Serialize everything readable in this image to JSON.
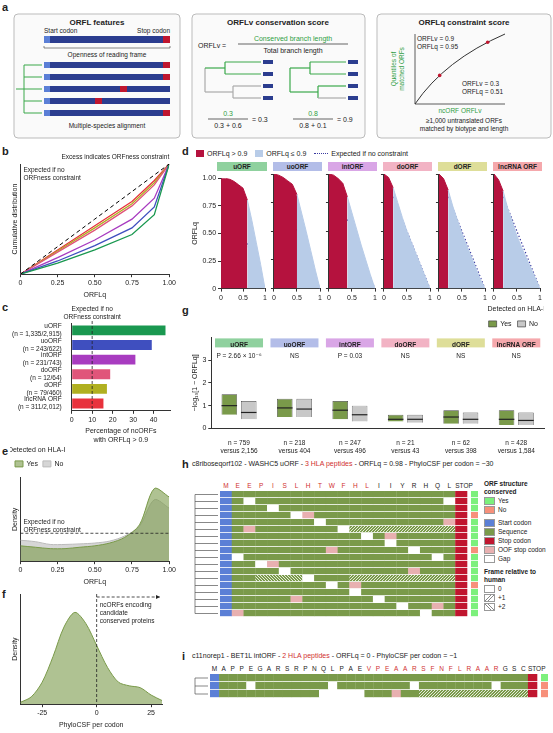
{
  "panels": {
    "a": {
      "panel": "a",
      "features": {
        "title": "ORFL features",
        "start": "Start codon",
        "stop": "Stop codon",
        "openness": "Openness of reading frame",
        "alignment": "Multiple-species alignment"
      },
      "conservation": {
        "title": "ORFLv conservation score",
        "lhs": "ORFLv =",
        "numerator": "Conserved branch length",
        "denominator": "Total branch length",
        "examples": [
          {
            "numerator": "0.3",
            "denominator": "0.3 + 0.6",
            "result": "= 0.3"
          },
          {
            "numerator": "0.8",
            "denominator": "0.8 + 0.1",
            "result": "= 0.9"
          }
        ]
      },
      "constraint": {
        "title": "ORFLq constraint score",
        "y_label": "Quantiles of matched ORFs",
        "x_label": "ncORF ORFLv",
        "points": [
          [
            "ORFLv = 0.9",
            "ORFLq = 0.95"
          ],
          [
            "ORFLv = 0.3",
            "ORFLq = 0.51"
          ]
        ],
        "note": "≥1,000 untranslated ORFs matched by biotype and length"
      }
    },
    "h": {
      "panel": "h",
      "title": [
        {
          "text": "c8riboseqorf102 - WASHC5 uORF - "
        },
        {
          "text": "3 HLA peptides",
          "peptide": true
        },
        {
          "text": " - ORFLq = 0.98 - PhyloCSF per codon = −30"
        }
      ],
      "sequence": [
        {
          "text": "M E E",
          "peptide": true
        },
        {
          "text": "P I S L H T W F H L",
          "peptide": true
        },
        {
          "text": "I I Y R H Q L"
        },
        {
          "text": "STOP"
        }
      ],
      "legend": [
        {
          "title": "ORF structure conserved",
          "items": [
            {
              "label": "Yes",
              "color": "#7cf07c"
            },
            {
              "label": "No",
              "color": "#f7907a"
            }
          ]
        },
        {
          "items": [
            {
              "label": "Start codon",
              "color": "#5b7fd6"
            },
            {
              "label": "Sequence",
              "color": "#7a9a4a"
            },
            {
              "label": "Stop codon",
              "color": "#c0162f"
            },
            {
              "label": "OOF stop codon",
              "color": "#e8b0b0"
            },
            {
              "label": "Gap",
              "color": "#ffffff"
            }
          ]
        },
        {
          "title": "Frame relative to human",
          "items": [
            {
              "label": "0"
            },
            {
              "label": "+1"
            },
            {
              "label": "+2"
            }
          ]
        }
      ]
    },
    "i": {
      "panel": "i",
      "title": [
        {
          "text": "c11norep1 - BET1L intORF - "
        },
        {
          "text": "2 HLA peptides",
          "peptide": true
        },
        {
          "text": " - ORFLq = 0 - PhyloCSF per codon = −1"
        }
      ],
      "sequence": [
        {
          "text": "M A P P E G A R S R P"
        },
        {
          "text": "N Q L P A E"
        },
        {
          "text": "V P E A",
          "peptide": true
        },
        {
          "text": "A R S",
          "peptide": true
        },
        {
          "text": "F N F L R A A R",
          "peptide": true
        },
        {
          "text": "G S C"
        },
        {
          "text": "STOP"
        }
      ]
    }
  },
  "chart_data": [
    {
      "panel": "b",
      "type": "line",
      "x": [
        0,
        0.25,
        0.5,
        0.75,
        0.9,
        1
      ],
      "xlim": [
        0,
        1
      ],
      "xticks": [
        0,
        0.25,
        {
          "value": 0.5,
          "label": "0.50"
        },
        0.75,
        {
          "value": 1,
          "label": "1.00"
        }
      ],
      "ylim": [
        0,
        1
      ],
      "tick_labels": "x",
      "x_label": "ORFLq",
      "y_label": "Cumulative distribution",
      "annotation": "Excess indicates ORFness constraint",
      "series": [
        {
          "name": "Expected if no ORFness constraint",
          "color": "#000000",
          "line_style": "dashed",
          "values": [
            0,
            0.25,
            0.5,
            0.75,
            0.9,
            1
          ]
        },
        {
          "color": "#1a9850",
          "values": [
            0,
            0.1,
            0.22,
            0.36,
            0.54,
            1
          ]
        },
        {
          "color": "#3f4fbf",
          "values": [
            0,
            0.12,
            0.26,
            0.42,
            0.61,
            1
          ]
        },
        {
          "color": "#a83cc0",
          "values": [
            0,
            0.15,
            0.31,
            0.5,
            0.69,
            1
          ]
        },
        {
          "color": "#e0557a",
          "values": [
            0,
            0.2,
            0.4,
            0.62,
            0.81,
            1
          ]
        },
        {
          "color": "#b0b020",
          "values": [
            0,
            0.21,
            0.42,
            0.64,
            0.83,
            1
          ]
        },
        {
          "color": "#e8323c",
          "values": [
            0,
            0.22,
            0.44,
            0.66,
            0.85,
            1
          ]
        }
      ]
    },
    {
      "panel": "c",
      "type": "bar",
      "orientation": "horizontal",
      "categories": [
        "uORF (n = 1,335/2,915)",
        "uoORF (n = 243/622)",
        "intORF (n = 231/743)",
        "doORF (n = 12/64)",
        "dORF (n = 79/460)",
        "lncRNA ORF (n = 311/2,012)"
      ],
      "values": [
        45.8,
        39.1,
        31.1,
        18.8,
        17.2,
        15.5
      ],
      "colors": [
        "#1a9850",
        "#3f4fbf",
        "#a83cc0",
        "#e0557a",
        "#b0b020",
        "#e8323c"
      ],
      "xlim": [
        0,
        48
      ],
      "xticks": [
        0,
        10,
        20,
        30,
        40
      ],
      "x_label": "Percentage of ncORFs with ORFLq > 0.9",
      "reference": {
        "value": 10,
        "label": "Expected if no ORFness constraint"
      }
    },
    {
      "panel": "d",
      "type": "line",
      "legend": "top",
      "threshold": 0.9,
      "x": [
        0,
        0.1,
        0.2,
        0.3,
        0.4,
        0.5,
        0.6,
        0.7,
        0.8,
        0.9,
        1
      ],
      "xlim": [
        0,
        1
      ],
      "xticks": [
        0,
        0.5,
        1
      ],
      "ylim": [
        0,
        1
      ],
      "yticks": [
        0,
        0.25,
        {
          "value": 0.5,
          "label": "0.50"
        },
        0.75,
        {
          "value": 1,
          "label": "1.00"
        }
      ],
      "y_label": "ORFLq",
      "series": [
        {
          "name": "ORFLq > 0.9",
          "color": "#b5123e"
        },
        {
          "name": "ORFLq ≤ 0.9",
          "color": "#b8cce8"
        },
        {
          "name": "Expected if no constraint",
          "color": "#3a3aa0",
          "line_style": "dotted",
          "values": [
            1,
            0.9,
            0.8,
            0.7,
            0.6,
            0.5,
            0.4,
            0.3,
            0.2,
            0.1,
            0
          ]
        }
      ],
      "subplots": [
        {
          "title": "uORF",
          "color": "#8fd19e",
          "values": [
            1,
            1,
            0.99,
            0.97,
            0.94,
            0.91,
            0.8,
            0.62,
            0.42,
            0.22,
            0
          ]
        },
        {
          "title": "uoORF",
          "color": "#b3bde8",
          "values": [
            1,
            0.99,
            0.97,
            0.94,
            0.91,
            0.82,
            0.66,
            0.5,
            0.33,
            0.16,
            0
          ]
        },
        {
          "title": "intORF",
          "color": "#d9a6e6",
          "values": [
            1,
            0.99,
            0.96,
            0.92,
            0.8,
            0.66,
            0.52,
            0.38,
            0.25,
            0.12,
            0
          ]
        },
        {
          "title": "doORF",
          "color": "#f2b3c4",
          "values": [
            1,
            0.97,
            0.88,
            0.75,
            0.62,
            0.5,
            0.4,
            0.3,
            0.2,
            0.1,
            0
          ]
        },
        {
          "title": "dORF",
          "color": "#dede99",
          "values": [
            1,
            0.96,
            0.86,
            0.72,
            0.6,
            0.48,
            0.38,
            0.28,
            0.18,
            0.08,
            0
          ]
        },
        {
          "title": "lncRNA ORF",
          "color": "#f5a8ac",
          "values": [
            1,
            0.95,
            0.85,
            0.7,
            0.58,
            0.46,
            0.36,
            0.27,
            0.18,
            0.09,
            0
          ]
        }
      ]
    },
    {
      "panel": "e",
      "type": "line",
      "legend": "top-left",
      "legend_title": "Detected on HLA-I",
      "x": [
        0,
        0.1,
        0.2,
        0.3,
        0.4,
        0.5,
        0.6,
        0.7,
        0.8,
        0.9,
        1
      ],
      "xlim": [
        0,
        1
      ],
      "xticks": [
        0,
        0.25,
        {
          "value": 0.5,
          "label": "0.50"
        },
        0.75,
        {
          "value": 1,
          "label": "1.00"
        }
      ],
      "ylim": [
        0,
        3
      ],
      "tick_labels": "x",
      "x_label": "ORFLq",
      "y_label": "Density",
      "reference": {
        "value": 1,
        "label": "Expected if no ORFness constraint"
      },
      "series": [
        {
          "name": "Yes",
          "color": "#7a9a4a",
          "values": [
            0.55,
            0.5,
            0.45,
            0.45,
            0.5,
            0.55,
            0.65,
            0.85,
            1.3,
            2.6,
            2.3
          ]
        },
        {
          "name": "No",
          "color": "#bbbbbb",
          "values": [
            0.75,
            0.7,
            0.6,
            0.6,
            0.62,
            0.65,
            0.72,
            0.9,
            1.25,
            2.2,
            1.9
          ]
        }
      ]
    },
    {
      "panel": "f",
      "type": "line",
      "x": [
        -35,
        -30,
        -25,
        -20,
        -15,
        -10,
        -5,
        0,
        5,
        10,
        15,
        20,
        25,
        30
      ],
      "values": [
        0.001,
        0.004,
        0.012,
        0.026,
        0.042,
        0.05,
        0.044,
        0.032,
        0.02,
        0.012,
        0.01,
        0.009,
        0.005,
        0.002
      ],
      "color": "#7a9a4a",
      "xlim": [
        -35,
        30
      ],
      "xticks": [
        -25,
        0,
        25
      ],
      "ylim": [
        0,
        0.06
      ],
      "tick_labels": "x",
      "x_label": "PhyloCSF per codon",
      "y_label": "Density",
      "reference": {
        "value": 0
      },
      "annotation": "ncORFs encoding candidate conserved proteins"
    },
    {
      "panel": "g",
      "type": "bar",
      "legend": "top-right",
      "legend_title": "Detected on HLA-I",
      "categories": [
        "uORF",
        "uoORF",
        "intORF",
        "doORF",
        "dORF",
        "lncRNA ORF"
      ],
      "p_labels": [
        "P = 2.66 × 10⁻⁶",
        "NS",
        "P = 0.03",
        "NS",
        "NS",
        "NS"
      ],
      "n_labels": [
        "n = 759 versus 2,156",
        "n = 218 versus 404",
        "n = 247 versus 496",
        "n = 21 versus 43",
        "n = 62 versus 398",
        "n = 428 versus 1,584"
      ],
      "colors": [
        "#8fd19e",
        "#b3bde8",
        "#d9a6e6",
        "#f2b3c4",
        "#dede99",
        "#f5a8ac"
      ],
      "ylim": [
        0,
        4
      ],
      "yticks": [
        0,
        1,
        2,
        3
      ],
      "y_label": "−log₁₀[1 − ORFLq]",
      "series": [
        {
          "name": "Yes",
          "color": "#7a9a4a",
          "values": [
            [
              0.6,
              1.5
            ],
            [
              0.5,
              1.3
            ],
            [
              0.4,
              1.2
            ],
            [
              0.3,
              0.6
            ],
            [
              0.2,
              0.8
            ],
            [
              0.15,
              0.8
            ]
          ],
          "medians": [
            1.0,
            0.9,
            0.8,
            0.4,
            0.5,
            0.4
          ]
        },
        {
          "name": "No",
          "color": "#c8c8c8",
          "values": [
            [
              0.4,
              1.2
            ],
            [
              0.5,
              1.3
            ],
            [
              0.3,
              1.0
            ],
            [
              0.25,
              0.6
            ],
            [
              0.2,
              0.7
            ],
            [
              0.15,
              0.7
            ]
          ],
          "medians": [
            0.7,
            0.85,
            0.6,
            0.4,
            0.4,
            0.35
          ]
        }
      ]
    }
  ]
}
